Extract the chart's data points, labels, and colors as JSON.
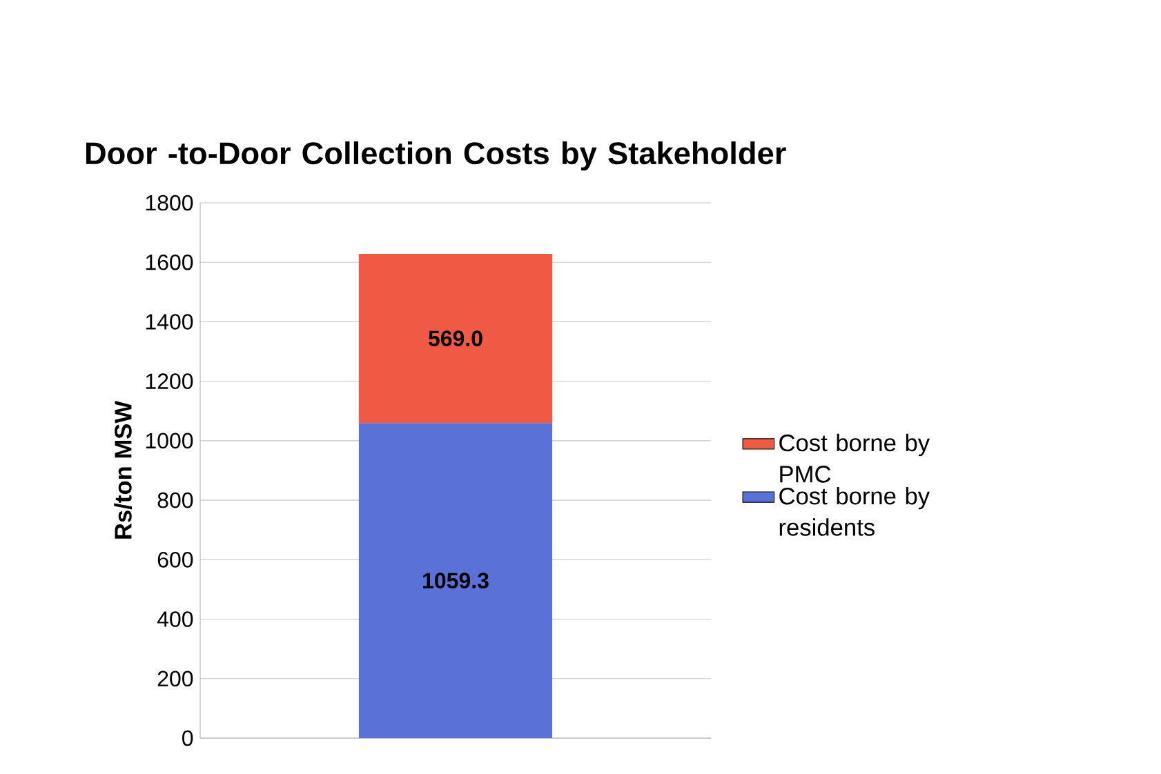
{
  "chart_data": {
    "type": "bar",
    "title": "Door -to-Door Collection Costs by Stakeholder",
    "ylabel": "Rs/ton MSW",
    "categories": [
      null
    ],
    "stacked": true,
    "series": [
      {
        "name": "Cost borne by residents",
        "color": "#5a72d8",
        "values": [
          1059.3
        ],
        "value_labels": [
          "1059.3"
        ]
      },
      {
        "name": "Cost borne by PMC",
        "color": "#f05a44",
        "values": [
          569.0
        ],
        "value_labels": [
          "569.0"
        ]
      }
    ],
    "ylim": [
      0,
      1800
    ],
    "yticks": [
      0,
      200,
      400,
      600,
      800,
      1000,
      1200,
      1400,
      1600,
      1800
    ],
    "grid": "y",
    "legend": "right"
  }
}
